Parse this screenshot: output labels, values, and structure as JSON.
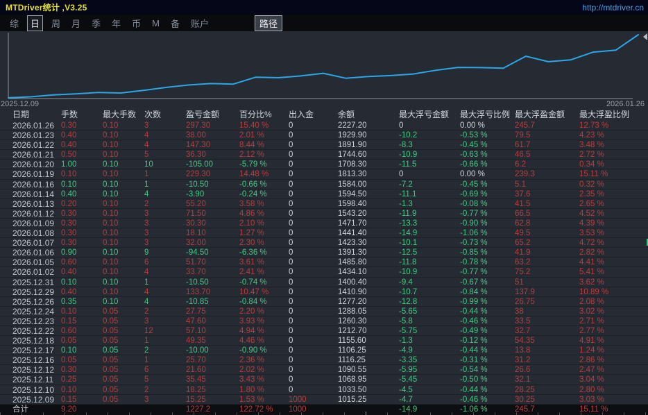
{
  "window": {
    "title": "MTDriver统计 ,V3.25",
    "url": "http://mtdriver.cn"
  },
  "menu": {
    "items": [
      {
        "label": "综",
        "selected": false
      },
      {
        "label": "日",
        "selected": true
      },
      {
        "label": "周",
        "selected": false
      },
      {
        "label": "月",
        "selected": false
      },
      {
        "label": "季",
        "selected": false
      },
      {
        "label": "年",
        "selected": false
      },
      {
        "label": "币",
        "selected": false
      },
      {
        "label": "M",
        "selected": false
      },
      {
        "label": "备",
        "selected": false
      },
      {
        "label": "账户",
        "selected": false
      }
    ],
    "path_button": "路径"
  },
  "chart_data": {
    "type": "line",
    "title": "",
    "xlabel": "",
    "ylabel": "",
    "x_start_label": "2025.12.09",
    "x_end_label": "2026.01.26",
    "x": [
      "2025.12.09",
      "2025.12.10",
      "2025.12.11",
      "2025.12.12",
      "2025.12.16",
      "2025.12.17",
      "2025.12.18",
      "2025.12.22",
      "2025.12.23",
      "2025.12.24",
      "2025.12.26",
      "2025.12.29",
      "2025.12.31",
      "2026.01.02",
      "2026.01.05",
      "2026.01.06",
      "2026.01.07",
      "2026.01.08",
      "2026.01.09",
      "2026.01.12",
      "2026.01.13",
      "2026.01.14",
      "2026.01.16",
      "2026.01.19",
      "2026.01.20",
      "2026.01.21",
      "2026.01.22",
      "2026.01.23",
      "2026.01.26"
    ],
    "series": [
      {
        "name": "余额",
        "values": [
          1015.25,
          1033.5,
          1068.95,
          1090.55,
          1116.25,
          1106.25,
          1155.6,
          1212.7,
          1260.3,
          1288.05,
          1277.2,
          1410.9,
          1400.4,
          1434.1,
          1485.8,
          1391.3,
          1423.3,
          1441.4,
          1471.7,
          1543.2,
          1598.4,
          1594.5,
          1584.0,
          1813.3,
          1708.3,
          1744.6,
          1891.9,
          1929.9,
          2227.2
        ]
      }
    ],
    "ylim": [
      1000,
      2240
    ],
    "grid": false,
    "legend": "none"
  },
  "table": {
    "headers": [
      "日期",
      "手数",
      "最大手数",
      "次数",
      "盈亏金额",
      "百分比%",
      "出入金",
      "余额",
      "最大浮亏金额",
      "最大浮亏比例",
      "最大浮盈金额",
      "最大浮盈比例"
    ],
    "rows": [
      [
        "2026.01.26",
        "0.30",
        "0.10",
        "3",
        "297.30",
        "15.40 %",
        "0",
        "2227.20",
        "0",
        "0.00 %",
        "245.7",
        "12.73 %"
      ],
      [
        "2026.01.23",
        "0.40",
        "0.10",
        "4",
        "38.00",
        "2.01 %",
        "0",
        "1929.90",
        "-10.2",
        "-0.53 %",
        "79.5",
        "4.23 %"
      ],
      [
        "2026.01.22",
        "0.40",
        "0.10",
        "4",
        "147.30",
        "8.44 %",
        "0",
        "1891.90",
        "-8.3",
        "-0.45 %",
        "61.7",
        "3.48 %"
      ],
      [
        "2026.01.21",
        "0.50",
        "0.10",
        "5",
        "36.30",
        "2.12 %",
        "0",
        "1744.60",
        "-10.9",
        "-0.63 %",
        "46.5",
        "2.72 %"
      ],
      [
        "2026.01.20",
        "1.00",
        "0.10",
        "10",
        "-105.00",
        "-5.79 %",
        "0",
        "1708.30",
        "-11.5",
        "-0.66 %",
        "6.2",
        "0.34 %"
      ],
      [
        "2026.01.19",
        "0.10",
        "0.10",
        "1",
        "229.30",
        "14.48 %",
        "0",
        "1813.30",
        "0",
        "0.00 %",
        "239.3",
        "15.11 %"
      ],
      [
        "2026.01.16",
        "0.10",
        "0.10",
        "1",
        "-10.50",
        "-0.66 %",
        "0",
        "1584.00",
        "-7.2",
        "-0.45 %",
        "5.1",
        "0.32 %"
      ],
      [
        "2026.01.14",
        "0.40",
        "0.10",
        "4",
        "-3.90",
        "-0.24 %",
        "0",
        "1594.50",
        "-11.1",
        "-0.69 %",
        "37.6",
        "2.35 %"
      ],
      [
        "2026.01.13",
        "0.20",
        "0.10",
        "2",
        "55.20",
        "3.58 %",
        "0",
        "1598.40",
        "-1.3",
        "-0.08 %",
        "41.5",
        "2.65 %"
      ],
      [
        "2026.01.12",
        "0.30",
        "0.10",
        "3",
        "71.50",
        "4.86 %",
        "0",
        "1543.20",
        "-11.9",
        "-0.77 %",
        "66.5",
        "4.52 %"
      ],
      [
        "2026.01.09",
        "0.30",
        "0.10",
        "3",
        "30.30",
        "2.10 %",
        "0",
        "1471.70",
        "-13.3",
        "-0.90 %",
        "62.8",
        "4.39 %"
      ],
      [
        "2026.01.08",
        "0.30",
        "0.10",
        "3",
        "18.10",
        "1.27 %",
        "0",
        "1441.40",
        "-14.9",
        "-1.06 %",
        "49.5",
        "3.53 %"
      ],
      [
        "2026.01.07",
        "0.30",
        "0.10",
        "3",
        "32.00",
        "2.30 %",
        "0",
        "1423.30",
        "-10.1",
        "-0.73 %",
        "65.2",
        "4.72 %"
      ],
      [
        "2026.01.06",
        "0.90",
        "0.10",
        "9",
        "-94.50",
        "-6.36 %",
        "0",
        "1391.30",
        "-12.5",
        "-0.85 %",
        "41.9",
        "2.82 %"
      ],
      [
        "2026.01.05",
        "0.60",
        "0.10",
        "6",
        "51.70",
        "3.61 %",
        "0",
        "1485.80",
        "-11.8",
        "-0.78 %",
        "63.2",
        "4.41 %"
      ],
      [
        "2026.01.02",
        "0.40",
        "0.10",
        "4",
        "33.70",
        "2.41 %",
        "0",
        "1434.10",
        "-10.9",
        "-0.77 %",
        "75.2",
        "5.41 %"
      ],
      [
        "2025.12.31",
        "0.10",
        "0.10",
        "1",
        "-10.50",
        "-0.74 %",
        "0",
        "1400.40",
        "-9.4",
        "-0.67 %",
        "51",
        "3.62 %"
      ],
      [
        "2025.12.29",
        "0.40",
        "0.10",
        "4",
        "133.70",
        "10.47 %",
        "0",
        "1410.90",
        "-10.7",
        "-0.84 %",
        "137.9",
        "10.89 %"
      ],
      [
        "2025.12.26",
        "0.35",
        "0.10",
        "4",
        "-10.85",
        "-0.84 %",
        "0",
        "1277.20",
        "-12.8",
        "-0.99 %",
        "26.75",
        "2.08 %"
      ],
      [
        "2025.12.24",
        "0.10",
        "0.05",
        "2",
        "27.75",
        "2.20 %",
        "0",
        "1288.05",
        "-5.65",
        "-0.44 %",
        "38",
        "3.02 %"
      ],
      [
        "2025.12.23",
        "0.15",
        "0.05",
        "3",
        "47.60",
        "3.93 %",
        "0",
        "1260.30",
        "-5.8",
        "-0.46 %",
        "33.5",
        "2.71 %"
      ],
      [
        "2025.12.22",
        "0.60",
        "0.05",
        "12",
        "57.10",
        "4.94 %",
        "0",
        "1212.70",
        "-5.75",
        "-0.49 %",
        "32.7",
        "2.77 %"
      ],
      [
        "2025.12.18",
        "0.05",
        "0.05",
        "1",
        "49.35",
        "4.46 %",
        "0",
        "1155.60",
        "-1.3",
        "-0.12 %",
        "54.35",
        "4.91 %"
      ],
      [
        "2025.12.17",
        "0.10",
        "0.05",
        "2",
        "-10.00",
        "-0.90 %",
        "0",
        "1106.25",
        "-4.9",
        "-0.44 %",
        "13.8",
        "1.24 %"
      ],
      [
        "2025.12.16",
        "0.05",
        "0.05",
        "1",
        "25.70",
        "2.36 %",
        "0",
        "1116.25",
        "-3.35",
        "-0.31 %",
        "31.2",
        "2.86 %"
      ],
      [
        "2025.12.12",
        "0.30",
        "0.05",
        "6",
        "21.60",
        "2.02 %",
        "0",
        "1090.55",
        "-5.95",
        "-0.54 %",
        "26.6",
        "2.47 %"
      ],
      [
        "2025.12.11",
        "0.25",
        "0.05",
        "5",
        "35.45",
        "3.43 %",
        "0",
        "1068.95",
        "-5.45",
        "-0.50 %",
        "32.1",
        "3.04 %"
      ],
      [
        "2025.12.10",
        "0.10",
        "0.05",
        "2",
        "18.25",
        "1.80 %",
        "0",
        "1033.50",
        "-4.5",
        "-0.44 %",
        "28.25",
        "2.80 %"
      ],
      [
        "2025.12.09",
        "0.15",
        "0.05",
        "3",
        "15.25",
        "1.53 %",
        "1000",
        "1015.25",
        "-4.7",
        "-0.46 %",
        "30.25",
        "3.03 %"
      ]
    ],
    "total_row": [
      "合计",
      "9.20",
      "",
      "",
      "1227.2",
      "122.72 %",
      "1000",
      "",
      "-14.9",
      "-1.06 %",
      "245.7",
      "15.11 %"
    ]
  },
  "colors": {
    "line": "#2aa7e8",
    "gain_red": "#b83c3c",
    "loss_green": "#3ecb82",
    "title_yellow": "#e6e130",
    "url_blue": "#4e9fdc",
    "background": "#262b33"
  }
}
